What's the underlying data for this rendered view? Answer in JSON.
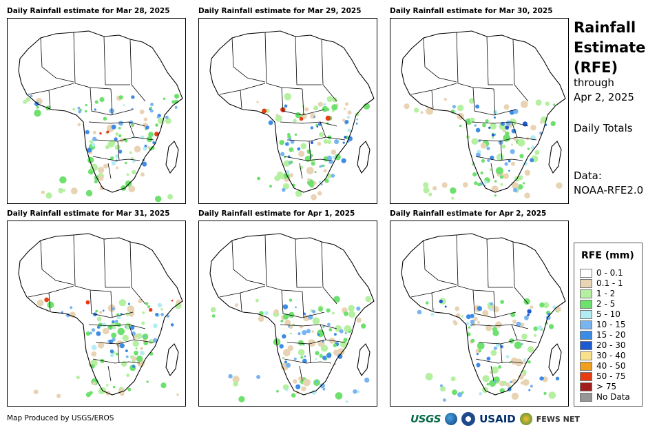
{
  "panels": [
    {
      "title": "Daily Rainfall estimate for Mar 28, 2025"
    },
    {
      "title": "Daily Rainfall estimate for Mar 29, 2025"
    },
    {
      "title": "Daily Rainfall estimate for Mar 30, 2025"
    },
    {
      "title": "Daily Rainfall estimate for Mar 31, 2025"
    },
    {
      "title": "Daily Rainfall estimate for Apr 1, 2025"
    },
    {
      "title": "Daily Rainfall estimate for Apr 2, 2025"
    }
  ],
  "side": {
    "title_line1": "Rainfall",
    "title_line2": "Estimate",
    "title_line3": "(RFE)",
    "through": "through",
    "end_date": "Apr 2, 2025",
    "totals": "Daily Totals",
    "data_label": "Data:",
    "data_source": "NOAA-RFE2.0"
  },
  "legend": {
    "title": "RFE (mm)",
    "items": [
      {
        "label": "0 - 0.1",
        "color": "#ffffff"
      },
      {
        "label": "0.1 - 1",
        "color": "#e8d4b4"
      },
      {
        "label": "1 - 2",
        "color": "#b4f0a0"
      },
      {
        "label": "2 - 5",
        "color": "#6ee06e"
      },
      {
        "label": "5 - 10",
        "color": "#b4ecf4"
      },
      {
        "label": "10 - 15",
        "color": "#78b4f0"
      },
      {
        "label": "15 - 20",
        "color": "#3c8ce6"
      },
      {
        "label": "20 - 30",
        "color": "#1e5ad2"
      },
      {
        "label": "30 - 40",
        "color": "#f8e08c"
      },
      {
        "label": "40 - 50",
        "color": "#f0a01e"
      },
      {
        "label": "50 - 75",
        "color": "#e63c14"
      },
      {
        "label": "> 75",
        "color": "#a01e1e"
      },
      {
        "label": "No Data",
        "color": "#969696"
      }
    ]
  },
  "credit": "Map Produced by USGS/EROS",
  "logos": {
    "usgs": "USGS",
    "usaid": "USAID",
    "fews": "FEWS NET"
  },
  "rain_patterns": [
    [
      [
        0,
        "2-5"
      ],
      [
        1,
        "10-15"
      ],
      [
        2,
        "50-75"
      ],
      [
        3,
        "15-20"
      ]
    ],
    [
      [
        1,
        "50-75"
      ],
      [
        2,
        "20-30"
      ],
      [
        3,
        "10-15"
      ],
      [
        4,
        "2-5"
      ]
    ],
    [
      [
        1,
        "15-20"
      ],
      [
        2,
        "20-30"
      ],
      [
        3,
        "10-15"
      ],
      [
        4,
        "2-5"
      ]
    ],
    [
      [
        0,
        "50-75"
      ],
      [
        1,
        "15-20"
      ],
      [
        2,
        "10-15"
      ],
      [
        3,
        "2-5"
      ]
    ],
    [
      [
        1,
        "2-5"
      ],
      [
        2,
        "10-15"
      ],
      [
        3,
        "15-20"
      ],
      [
        5,
        "10-15"
      ]
    ],
    [
      [
        0,
        "20-30"
      ],
      [
        1,
        "10-15"
      ],
      [
        3,
        "15-20"
      ],
      [
        5,
        "10-15"
      ]
    ]
  ]
}
